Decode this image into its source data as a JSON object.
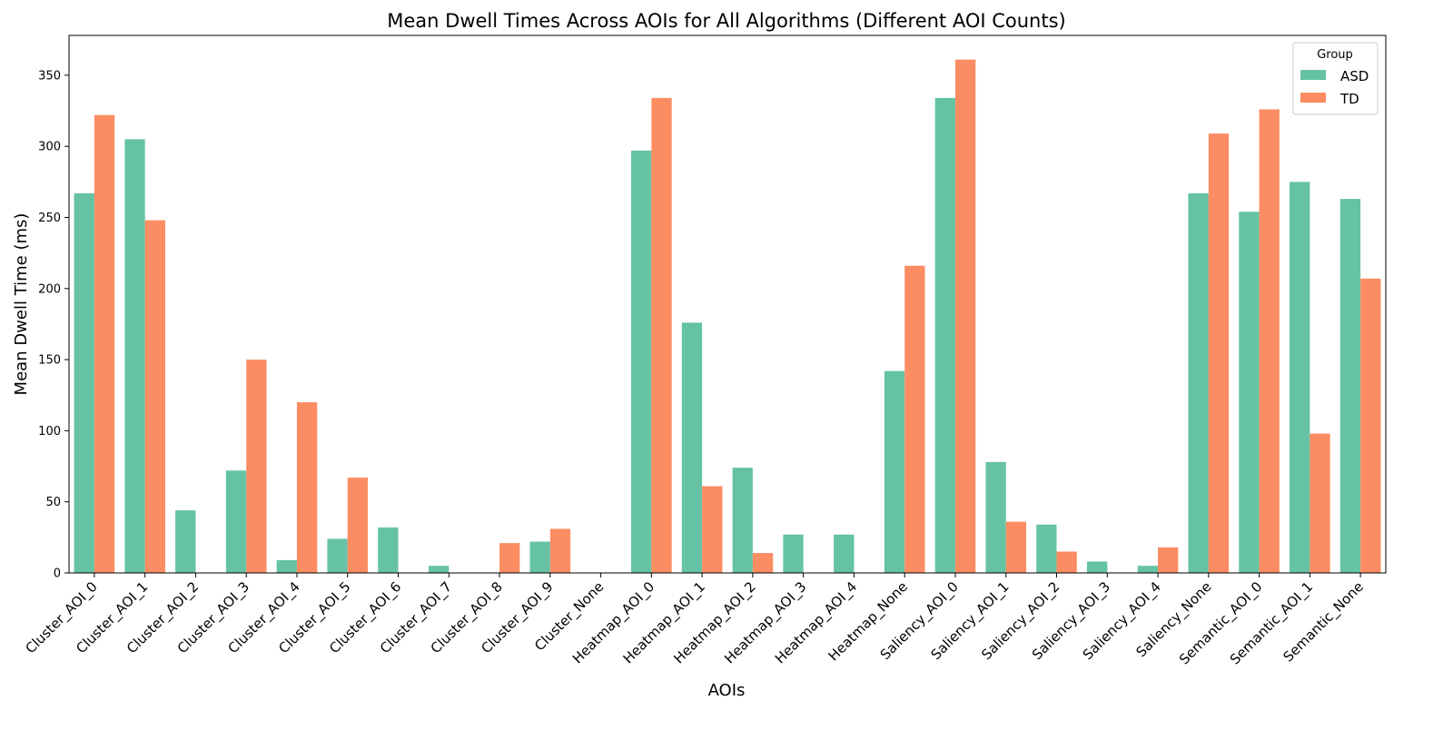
{
  "chart_data": {
    "type": "bar",
    "title": "Mean Dwell Times Across AOIs for All Algorithms (Different AOI Counts)",
    "xlabel": "AOIs",
    "ylabel": "Mean Dwell Time (ms)",
    "ylim": [
      0,
      378
    ],
    "yticks": [
      0,
      50,
      100,
      150,
      200,
      250,
      300,
      350
    ],
    "grid": false,
    "categories": [
      "Cluster_AOI_0",
      "Cluster_AOI_1",
      "Cluster_AOI_2",
      "Cluster_AOI_3",
      "Cluster_AOI_4",
      "Cluster_AOI_5",
      "Cluster_AOI_6",
      "Cluster_AOI_7",
      "Cluster_AOI_8",
      "Cluster_AOI_9",
      "Cluster_None",
      "Heatmap_AOI_0",
      "Heatmap_AOI_1",
      "Heatmap_AOI_2",
      "Heatmap_AOI_3",
      "Heatmap_AOI_4",
      "Heatmap_None",
      "Saliency_AOI_0",
      "Saliency_AOI_1",
      "Saliency_AOI_2",
      "Saliency_AOI_3",
      "Saliency_AOI_4",
      "Saliency_None",
      "Semantic_AOI_0",
      "Semantic_AOI_1",
      "Semantic_None"
    ],
    "series": [
      {
        "name": "ASD",
        "color": "#66c2a5",
        "values": [
          267,
          305,
          44,
          72,
          9,
          24,
          32,
          5,
          0,
          22,
          0,
          297,
          176,
          74,
          27,
          27,
          142,
          334,
          78,
          34,
          8,
          5,
          267,
          254,
          275,
          263
        ]
      },
      {
        "name": "TD",
        "color": "#fc8d62",
        "values": [
          322,
          248,
          0,
          150,
          120,
          67,
          0,
          0,
          21,
          31,
          0,
          334,
          61,
          14,
          0,
          0,
          216,
          361,
          36,
          15,
          0,
          18,
          309,
          326,
          98,
          207
        ]
      }
    ],
    "legend": {
      "title": "Group",
      "position": "top-right"
    }
  }
}
